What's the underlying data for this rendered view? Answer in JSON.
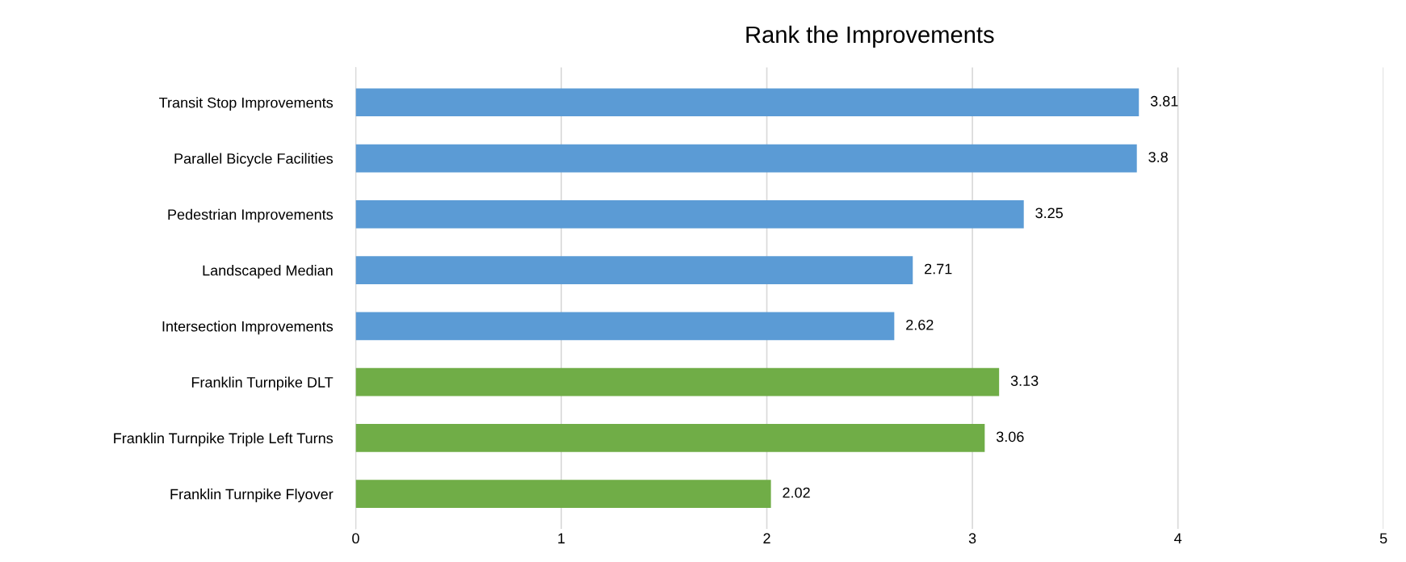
{
  "chart_data": {
    "type": "bar",
    "orientation": "horizontal",
    "title": "Rank the Improvements",
    "categories": [
      "Transit Stop Improvements",
      "Parallel Bicycle Facilities",
      "Pedestrian Improvements",
      "Landscaped Median",
      "Intersection Improvements",
      "Franklin Turnpike DLT",
      "Franklin Turnpike Triple Left Turns",
      "Franklin Turnpike Flyover"
    ],
    "values": [
      3.81,
      3.8,
      3.25,
      2.71,
      2.62,
      3.13,
      3.06,
      2.02
    ],
    "colors": [
      "#5b9bd5",
      "#5b9bd5",
      "#5b9bd5",
      "#5b9bd5",
      "#5b9bd5",
      "#70ad47",
      "#70ad47",
      "#70ad47"
    ],
    "xlim": [
      0,
      5
    ],
    "xticks": [
      0,
      1,
      2,
      3,
      4,
      5
    ],
    "grid": "x",
    "data_labels": true
  }
}
